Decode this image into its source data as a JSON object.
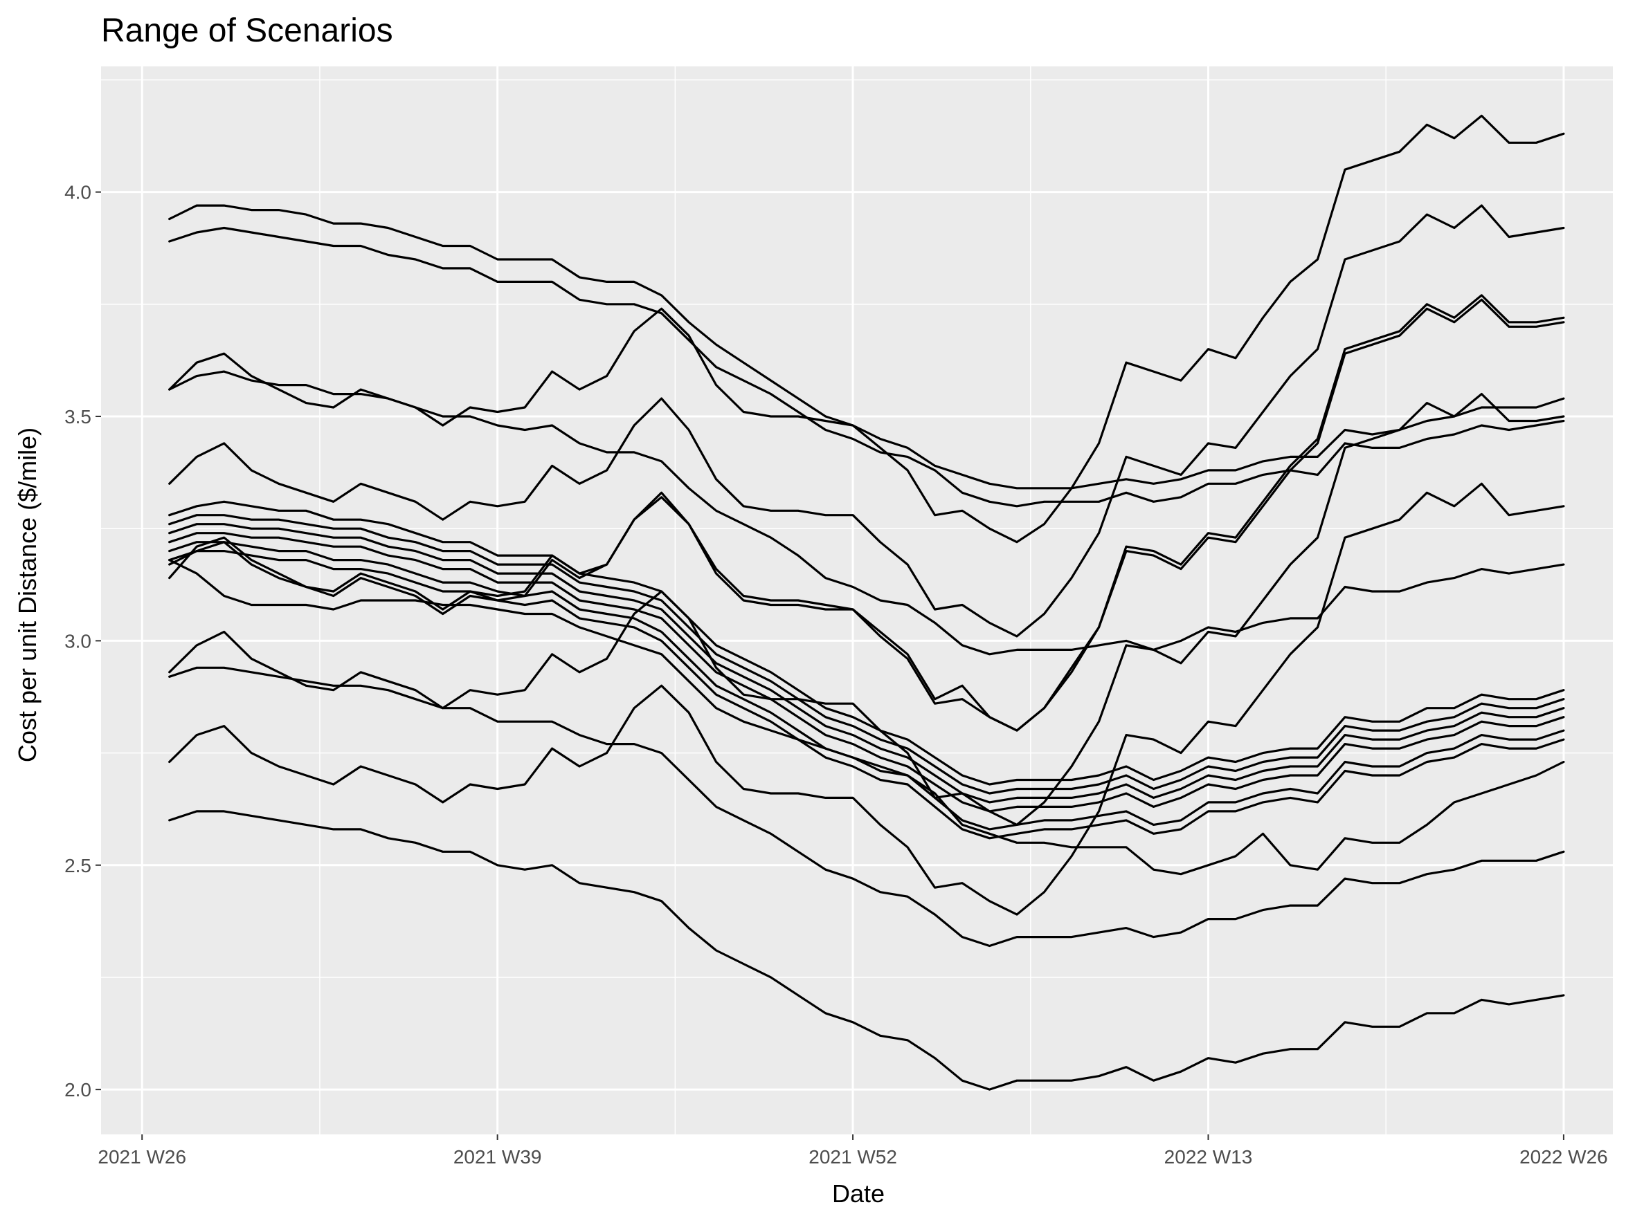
{
  "chart_data": {
    "type": "line",
    "title": "Range of Scenarios",
    "xlabel": "Date",
    "ylabel": "Cost per unit Distance ($/mile)",
    "x_ticks": [
      "2021 W26",
      "2021 W39",
      "2021 W52",
      "2022 W13",
      "2022 W26"
    ],
    "y_ticks": [
      "2.0",
      "2.5",
      "3.0",
      "3.5",
      "4.0"
    ],
    "ylim": [
      1.9,
      4.28
    ],
    "grid": true,
    "legend": "none",
    "x": [
      "2021 W27",
      "2021 W28",
      "2021 W29",
      "2021 W30",
      "2021 W31",
      "2021 W32",
      "2021 W33",
      "2021 W34",
      "2021 W35",
      "2021 W36",
      "2021 W37",
      "2021 W38",
      "2021 W39",
      "2021 W40",
      "2021 W41",
      "2021 W42",
      "2021 W43",
      "2021 W44",
      "2021 W45",
      "2021 W46",
      "2021 W47",
      "2021 W48",
      "2021 W49",
      "2021 W50",
      "2021 W51",
      "2021 W52",
      "2022 W01",
      "2022 W02",
      "2022 W03",
      "2022 W04",
      "2022 W05",
      "2022 W06",
      "2022 W07",
      "2022 W08",
      "2022 W09",
      "2022 W10",
      "2022 W11",
      "2022 W12",
      "2022 W13",
      "2022 W14",
      "2022 W15",
      "2022 W16",
      "2022 W17",
      "2022 W18",
      "2022 W19",
      "2022 W20",
      "2022 W21",
      "2022 W22",
      "2022 W23",
      "2022 W24",
      "2022 W25",
      "2022 W26"
    ],
    "series": [
      {
        "values": [
          3.94,
          3.97,
          3.97,
          3.96,
          3.96,
          3.95,
          3.93,
          3.93,
          3.92,
          3.9,
          3.88,
          3.88,
          3.85,
          3.85,
          3.85,
          3.81,
          3.8,
          3.8,
          3.77,
          3.71,
          3.66,
          3.62,
          3.58,
          3.54,
          3.5,
          3.48,
          3.45,
          3.43,
          3.39,
          3.37,
          3.35,
          3.34,
          3.34,
          3.34,
          3.35,
          3.36,
          3.35,
          3.36,
          3.38,
          3.38,
          3.4,
          3.41,
          3.41,
          3.47,
          3.46,
          3.47,
          3.49,
          3.5,
          3.52,
          3.52,
          3.52,
          3.54
        ]
      },
      {
        "values": [
          3.89,
          3.91,
          3.92,
          3.91,
          3.9,
          3.89,
          3.88,
          3.88,
          3.86,
          3.85,
          3.83,
          3.83,
          3.8,
          3.8,
          3.8,
          3.76,
          3.75,
          3.75,
          3.73,
          3.67,
          3.61,
          3.58,
          3.55,
          3.51,
          3.47,
          3.45,
          3.42,
          3.41,
          3.38,
          3.33,
          3.31,
          3.3,
          3.31,
          3.31,
          3.31,
          3.33,
          3.31,
          3.32,
          3.35,
          3.35,
          3.37,
          3.38,
          3.37,
          3.44,
          3.43,
          3.43,
          3.45,
          3.46,
          3.48,
          3.47,
          3.48,
          3.49
        ]
      },
      {
        "values": [
          3.56,
          3.59,
          3.6,
          3.58,
          3.57,
          3.57,
          3.55,
          3.55,
          3.54,
          3.52,
          3.5,
          3.5,
          3.48,
          3.47,
          3.48,
          3.44,
          3.42,
          3.42,
          3.4,
          3.34,
          3.29,
          3.26,
          3.23,
          3.19,
          3.14,
          3.12,
          3.09,
          3.08,
          3.04,
          2.99,
          2.97,
          2.98,
          2.98,
          2.98,
          2.99,
          3.0,
          2.98,
          3.0,
          3.03,
          3.02,
          3.04,
          3.05,
          3.05,
          3.12,
          3.11,
          3.11,
          3.13,
          3.14,
          3.16,
          3.15,
          3.16,
          3.17
        ]
      },
      {
        "values": [
          3.56,
          3.62,
          3.64,
          3.59,
          3.56,
          3.53,
          3.52,
          3.56,
          3.54,
          3.52,
          3.48,
          3.52,
          3.51,
          3.52,
          3.6,
          3.56,
          3.59,
          3.69,
          3.74,
          3.68,
          3.57,
          3.51,
          3.5,
          3.5,
          3.49,
          3.48,
          3.43,
          3.38,
          3.28,
          3.29,
          3.25,
          3.22,
          3.26,
          3.34,
          3.44,
          3.62,
          3.6,
          3.58,
          3.65,
          3.63,
          3.72,
          3.8,
          3.85,
          4.05,
          4.07,
          4.09,
          4.15,
          4.12,
          4.17,
          4.11,
          4.11,
          4.13
        ]
      },
      {
        "values": [
          3.35,
          3.41,
          3.44,
          3.38,
          3.35,
          3.33,
          3.31,
          3.35,
          3.33,
          3.31,
          3.27,
          3.31,
          3.3,
          3.31,
          3.39,
          3.35,
          3.38,
          3.48,
          3.54,
          3.47,
          3.36,
          3.3,
          3.29,
          3.29,
          3.28,
          3.28,
          3.22,
          3.17,
          3.07,
          3.08,
          3.04,
          3.01,
          3.06,
          3.14,
          3.24,
          3.41,
          3.39,
          3.37,
          3.44,
          3.43,
          3.51,
          3.59,
          3.65,
          3.85,
          3.87,
          3.89,
          3.95,
          3.92,
          3.97,
          3.9,
          3.91,
          3.92
        ]
      },
      {
        "values": [
          3.17,
          3.2,
          3.22,
          3.17,
          3.14,
          3.12,
          3.1,
          3.14,
          3.12,
          3.1,
          3.06,
          3.1,
          3.09,
          3.1,
          3.18,
          3.14,
          3.17,
          3.27,
          3.33,
          3.26,
          3.15,
          3.09,
          3.08,
          3.08,
          3.07,
          3.07,
          3.01,
          2.96,
          2.86,
          2.87,
          2.83,
          2.8,
          2.85,
          2.93,
          3.03,
          3.2,
          3.19,
          3.16,
          3.23,
          3.22,
          3.3,
          3.38,
          3.44,
          3.64,
          3.66,
          3.68,
          3.74,
          3.71,
          3.76,
          3.7,
          3.7,
          3.71
        ]
      },
      {
        "values": [
          3.14,
          3.21,
          3.23,
          3.18,
          3.15,
          3.12,
          3.11,
          3.15,
          3.13,
          3.11,
          3.07,
          3.11,
          3.1,
          3.11,
          3.19,
          3.15,
          3.17,
          3.27,
          3.32,
          3.26,
          3.16,
          3.1,
          3.09,
          3.09,
          3.08,
          3.07,
          3.02,
          2.97,
          2.87,
          2.9,
          2.83,
          2.8,
          2.85,
          2.94,
          3.03,
          3.21,
          3.2,
          3.17,
          3.24,
          3.23,
          3.31,
          3.39,
          3.45,
          3.65,
          3.67,
          3.69,
          3.75,
          3.72,
          3.77,
          3.71,
          3.71,
          3.72
        ]
      },
      {
        "values": [
          3.28,
          3.3,
          3.31,
          3.3,
          3.29,
          3.29,
          3.27,
          3.27,
          3.26,
          3.24,
          3.22,
          3.22,
          3.19,
          3.19,
          3.19,
          3.15,
          3.14,
          3.13,
          3.11,
          3.05,
          2.99,
          2.96,
          2.93,
          2.89,
          2.85,
          2.83,
          2.8,
          2.78,
          2.74,
          2.7,
          2.68,
          2.69,
          2.69,
          2.69,
          2.7,
          2.72,
          2.69,
          2.71,
          2.74,
          2.73,
          2.75,
          2.76,
          2.76,
          2.83,
          2.82,
          2.82,
          2.85,
          2.85,
          2.88,
          2.87,
          2.87,
          2.89
        ]
      },
      {
        "values": [
          3.26,
          3.28,
          3.28,
          3.27,
          3.27,
          3.26,
          3.25,
          3.25,
          3.23,
          3.22,
          3.2,
          3.2,
          3.17,
          3.17,
          3.17,
          3.13,
          3.12,
          3.11,
          3.09,
          3.03,
          2.97,
          2.94,
          2.91,
          2.87,
          2.83,
          2.81,
          2.78,
          2.76,
          2.72,
          2.68,
          2.66,
          2.67,
          2.67,
          2.67,
          2.68,
          2.7,
          2.67,
          2.69,
          2.72,
          2.71,
          2.73,
          2.74,
          2.74,
          2.81,
          2.8,
          2.8,
          2.82,
          2.83,
          2.86,
          2.85,
          2.85,
          2.87
        ]
      },
      {
        "values": [
          3.24,
          3.26,
          3.26,
          3.25,
          3.25,
          3.24,
          3.23,
          3.23,
          3.21,
          3.2,
          3.18,
          3.18,
          3.15,
          3.15,
          3.15,
          3.11,
          3.1,
          3.09,
          3.07,
          3.01,
          2.95,
          2.92,
          2.89,
          2.85,
          2.81,
          2.79,
          2.76,
          2.74,
          2.7,
          2.66,
          2.64,
          2.65,
          2.65,
          2.65,
          2.66,
          2.68,
          2.65,
          2.67,
          2.7,
          2.69,
          2.71,
          2.72,
          2.72,
          2.79,
          2.78,
          2.78,
          2.8,
          2.81,
          2.84,
          2.83,
          2.83,
          2.85
        ]
      },
      {
        "values": [
          3.22,
          3.24,
          3.24,
          3.23,
          3.23,
          3.22,
          3.21,
          3.21,
          3.19,
          3.18,
          3.16,
          3.16,
          3.13,
          3.13,
          3.13,
          3.09,
          3.08,
          3.07,
          3.05,
          2.99,
          2.93,
          2.9,
          2.87,
          2.83,
          2.79,
          2.77,
          2.74,
          2.72,
          2.68,
          2.64,
          2.62,
          2.63,
          2.63,
          2.63,
          2.64,
          2.66,
          2.63,
          2.65,
          2.68,
          2.67,
          2.69,
          2.7,
          2.7,
          2.77,
          2.76,
          2.76,
          2.78,
          2.79,
          2.82,
          2.81,
          2.81,
          2.83
        ]
      },
      {
        "values": [
          3.2,
          3.22,
          3.22,
          3.21,
          3.2,
          3.2,
          3.18,
          3.18,
          3.17,
          3.15,
          3.13,
          3.13,
          3.11,
          3.1,
          3.11,
          3.07,
          3.06,
          3.05,
          3.02,
          2.96,
          2.9,
          2.87,
          2.84,
          2.8,
          2.76,
          2.74,
          2.71,
          2.7,
          2.65,
          2.6,
          2.58,
          2.59,
          2.6,
          2.6,
          2.61,
          2.62,
          2.59,
          2.6,
          2.64,
          2.64,
          2.66,
          2.67,
          2.66,
          2.73,
          2.72,
          2.72,
          2.75,
          2.76,
          2.79,
          2.78,
          2.78,
          2.8
        ]
      },
      {
        "values": [
          3.18,
          3.2,
          3.2,
          3.19,
          3.18,
          3.18,
          3.16,
          3.16,
          3.15,
          3.13,
          3.11,
          3.11,
          3.09,
          3.08,
          3.09,
          3.05,
          3.04,
          3.03,
          3.0,
          2.94,
          2.88,
          2.85,
          2.82,
          2.78,
          2.74,
          2.72,
          2.69,
          2.68,
          2.63,
          2.58,
          2.56,
          2.57,
          2.58,
          2.58,
          2.59,
          2.6,
          2.57,
          2.58,
          2.62,
          2.62,
          2.64,
          2.65,
          2.64,
          2.71,
          2.7,
          2.7,
          2.73,
          2.74,
          2.77,
          2.76,
          2.76,
          2.78
        ]
      },
      {
        "values": [
          3.18,
          3.15,
          3.1,
          3.08,
          3.08,
          3.08,
          3.07,
          3.09,
          3.09,
          3.09,
          3.08,
          3.08,
          3.07,
          3.06,
          3.06,
          3.03,
          3.01,
          2.99,
          2.97,
          2.91,
          2.85,
          2.82,
          2.8,
          2.78,
          2.76,
          2.74,
          2.72,
          2.7,
          2.66,
          2.59,
          2.57,
          2.55,
          2.55,
          2.54,
          2.54,
          2.54,
          2.49,
          2.48,
          2.5,
          2.52,
          2.57,
          2.5,
          2.49,
          2.56,
          2.55,
          2.55,
          2.59,
          2.64,
          2.66,
          2.68,
          2.7,
          2.73
        ]
      },
      {
        "values": [
          2.93,
          2.99,
          3.02,
          2.96,
          2.93,
          2.9,
          2.89,
          2.93,
          2.91,
          2.89,
          2.85,
          2.89,
          2.88,
          2.89,
          2.97,
          2.93,
          2.96,
          3.06,
          3.11,
          3.05,
          2.94,
          2.88,
          2.87,
          2.87,
          2.86,
          2.86,
          2.8,
          2.75,
          2.65,
          2.66,
          2.62,
          2.59,
          2.64,
          2.72,
          2.82,
          2.99,
          2.98,
          2.95,
          3.02,
          3.01,
          3.09,
          3.17,
          3.23,
          3.43,
          3.45,
          3.47,
          3.53,
          3.5,
          3.55,
          3.49,
          3.49,
          3.5
        ]
      },
      {
        "values": [
          2.92,
          2.94,
          2.94,
          2.93,
          2.92,
          2.91,
          2.9,
          2.9,
          2.89,
          2.87,
          2.85,
          2.85,
          2.82,
          2.82,
          2.82,
          2.79,
          2.77,
          2.77,
          2.75,
          2.69,
          2.63,
          2.6,
          2.57,
          2.53,
          2.49,
          2.47,
          2.44,
          2.43,
          2.39,
          2.34,
          2.32,
          2.34,
          2.34,
          2.34,
          2.35,
          2.36,
          2.34,
          2.35,
          2.38,
          2.38,
          2.4,
          2.41,
          2.41,
          2.47,
          2.46,
          2.46,
          2.48,
          2.49,
          2.51,
          2.51,
          2.51,
          2.53
        ]
      },
      {
        "values": [
          2.73,
          2.79,
          2.81,
          2.75,
          2.72,
          2.7,
          2.68,
          2.72,
          2.7,
          2.68,
          2.64,
          2.68,
          2.67,
          2.68,
          2.76,
          2.72,
          2.75,
          2.85,
          2.9,
          2.84,
          2.73,
          2.67,
          2.66,
          2.66,
          2.65,
          2.65,
          2.59,
          2.54,
          2.45,
          2.46,
          2.42,
          2.39,
          2.44,
          2.52,
          2.62,
          2.79,
          2.78,
          2.75,
          2.82,
          2.81,
          2.89,
          2.97,
          3.03,
          3.23,
          3.25,
          3.27,
          3.33,
          3.3,
          3.35,
          3.28,
          3.29,
          3.3
        ]
      },
      {
        "values": [
          2.6,
          2.62,
          2.62,
          2.61,
          2.6,
          2.59,
          2.58,
          2.58,
          2.56,
          2.55,
          2.53,
          2.53,
          2.5,
          2.49,
          2.5,
          2.46,
          2.45,
          2.44,
          2.42,
          2.36,
          2.31,
          2.28,
          2.25,
          2.21,
          2.17,
          2.15,
          2.12,
          2.11,
          2.07,
          2.02,
          2.0,
          2.02,
          2.02,
          2.02,
          2.03,
          2.05,
          2.02,
          2.04,
          2.07,
          2.06,
          2.08,
          2.09,
          2.09,
          2.15,
          2.14,
          2.14,
          2.17,
          2.17,
          2.2,
          2.19,
          2.2,
          2.21
        ]
      }
    ]
  }
}
